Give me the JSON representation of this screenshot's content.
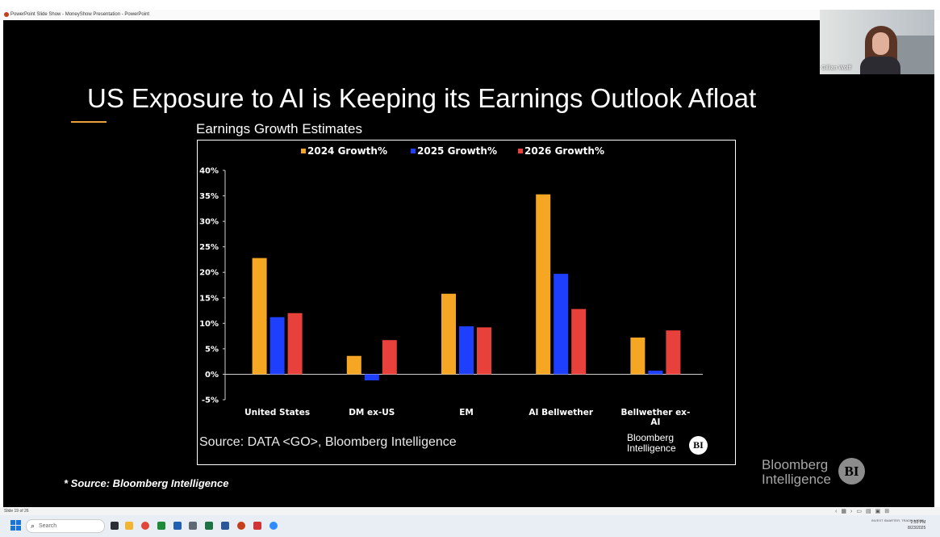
{
  "window": {
    "title": "PowerPoint Slide Show  -  MoneyShow Presentation  -  PowerPoint"
  },
  "slide": {
    "title": "US Exposure to AI is Keeping its Earnings Outlook Afloat",
    "chart_title": "Earnings Growth Estimates",
    "chart_source": "Source: DATA <GO>, Bloomberg Intelligence",
    "footnote": "* Source: Bloomberg Intelligence",
    "logo_small": {
      "line1": "Bloomberg",
      "line2": "Intelligence",
      "badge": "BI"
    },
    "logo_big": {
      "line1": "Bloomberg",
      "line2": "Intelligence",
      "badge": "BI"
    }
  },
  "chart_data": {
    "type": "bar",
    "title": "Earnings Growth Estimates",
    "categories": [
      "United States",
      "DM ex-US",
      "EM",
      "AI Bellwether",
      "Bellwether ex-AI"
    ],
    "category_lines": [
      [
        "United States"
      ],
      [
        "DM ex-US"
      ],
      [
        "EM"
      ],
      [
        "AI Bellwether"
      ],
      [
        "Bellwether ex-",
        "AI"
      ]
    ],
    "series": [
      {
        "name": "2024 Growth%",
        "color": "#f5a623",
        "values": [
          22.8,
          3.6,
          15.8,
          35.3,
          7.2
        ]
      },
      {
        "name": "2025 Growth%",
        "color": "#1f3fff",
        "values": [
          11.2,
          -1.2,
          9.4,
          19.7,
          0.7
        ]
      },
      {
        "name": "2026 Growth%",
        "color": "#e8403a",
        "values": [
          12.0,
          6.7,
          9.2,
          12.8,
          8.6
        ]
      }
    ],
    "ylim": [
      -5,
      40
    ],
    "yticks": [
      -5,
      0,
      5,
      10,
      15,
      20,
      25,
      30,
      35,
      40
    ],
    "ytick_labels": [
      "-5%",
      "0%",
      "5%",
      "10%",
      "15%",
      "20%",
      "25%",
      "30%",
      "35%",
      "40%"
    ],
    "legend": "top",
    "grid": false
  },
  "webcam": {
    "name": "Gillian Wolff"
  },
  "statusbar": {
    "slide_label": "Slide 19 of 26"
  },
  "taskbar": {
    "search_placeholder": "Search",
    "tray_text": "INVEST SMARTER, TRADE WISER",
    "time": "2:55 PM",
    "date": "8/23/2025"
  }
}
